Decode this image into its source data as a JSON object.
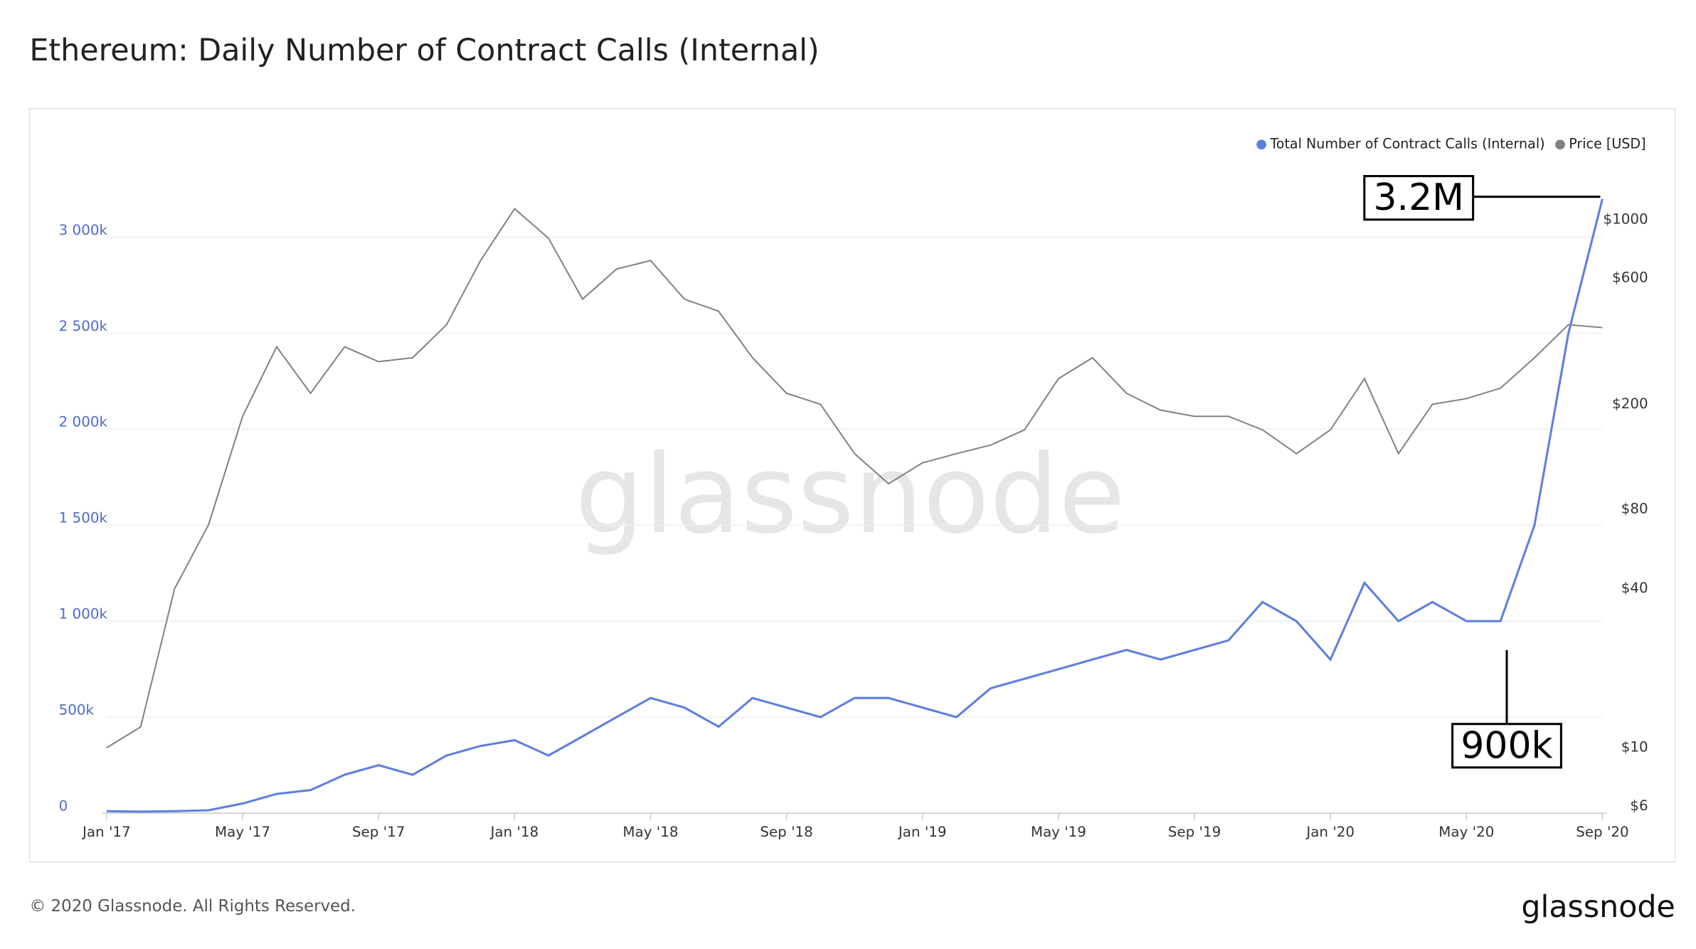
{
  "chart_data": {
    "type": "line",
    "title": "Ethereum: Daily Number of Contract Calls (Internal)",
    "x": [
      "2017-01",
      "2017-02",
      "2017-03",
      "2017-04",
      "2017-05",
      "2017-06",
      "2017-07",
      "2017-08",
      "2017-09",
      "2017-10",
      "2017-11",
      "2017-12",
      "2018-01",
      "2018-02",
      "2018-03",
      "2018-04",
      "2018-05",
      "2018-06",
      "2018-07",
      "2018-08",
      "2018-09",
      "2018-10",
      "2018-11",
      "2018-12",
      "2019-01",
      "2019-02",
      "2019-03",
      "2019-04",
      "2019-05",
      "2019-06",
      "2019-07",
      "2019-08",
      "2019-09",
      "2019-10",
      "2019-11",
      "2019-12",
      "2020-01",
      "2020-02",
      "2020-03",
      "2020-04",
      "2020-05",
      "2020-06",
      "2020-07",
      "2020-08",
      "2020-09"
    ],
    "xticks": [
      {
        "value": "2017-01",
        "label": "Jan '17"
      },
      {
        "value": "2017-05",
        "label": "May '17"
      },
      {
        "value": "2017-09",
        "label": "Sep '17"
      },
      {
        "value": "2018-01",
        "label": "Jan '18"
      },
      {
        "value": "2018-05",
        "label": "May '18"
      },
      {
        "value": "2018-09",
        "label": "Sep '18"
      },
      {
        "value": "2019-01",
        "label": "Jan '19"
      },
      {
        "value": "2019-05",
        "label": "May '19"
      },
      {
        "value": "2019-09",
        "label": "Sep '19"
      },
      {
        "value": "2020-01",
        "label": "Jan '20"
      },
      {
        "value": "2020-05",
        "label": "May '20"
      },
      {
        "value": "2020-09",
        "label": "Sep '20"
      }
    ],
    "series": [
      {
        "name": "Total Number of Contract Calls (Internal)",
        "color": "#5e7fe0",
        "values": [
          10000,
          8000,
          10000,
          15000,
          50000,
          100000,
          120000,
          200000,
          250000,
          200000,
          300000,
          350000,
          380000,
          300000,
          400000,
          500000,
          600000,
          550000,
          450000,
          600000,
          550000,
          500000,
          600000,
          600000,
          550000,
          500000,
          650000,
          700000,
          750000,
          800000,
          850000,
          800000,
          850000,
          900000,
          1100000,
          1000000,
          800000,
          1200000,
          1000000,
          1100000,
          1000000,
          1000000,
          1500000,
          2500000,
          3200000
        ]
      },
      {
        "name": "Price [USD]",
        "color": "#808080",
        "axis": "y2",
        "values": [
          10,
          12,
          40,
          70,
          180,
          330,
          220,
          330,
          290,
          300,
          400,
          700,
          1100,
          850,
          500,
          650,
          700,
          500,
          450,
          300,
          220,
          200,
          130,
          100,
          120,
          130,
          140,
          160,
          250,
          300,
          220,
          190,
          180,
          180,
          160,
          130,
          160,
          250,
          130,
          200,
          210,
          230,
          300,
          400,
          390
        ]
      }
    ],
    "ylim": [
      0,
      3500000
    ],
    "yticks": [
      {
        "value": 0,
        "label": "0"
      },
      {
        "value": 500000,
        "label": "500k"
      },
      {
        "value": 1000000,
        "label": "1 000k"
      },
      {
        "value": 1500000,
        "label": "1 500k"
      },
      {
        "value": 2000000,
        "label": "2 000k"
      },
      {
        "value": 2500000,
        "label": "2 500k"
      },
      {
        "value": 3000000,
        "label": "3 000k"
      }
    ],
    "y2lim": [
      5.66,
      1980
    ],
    "y2log": true,
    "y2ticks": [
      {
        "value": 6,
        "label": "$6"
      },
      {
        "value": 10,
        "label": "$10"
      },
      {
        "value": 40,
        "label": "$40"
      },
      {
        "value": 80,
        "label": "$80"
      },
      {
        "value": 200,
        "label": "$200"
      },
      {
        "value": 600,
        "label": "$600"
      },
      {
        "value": 1000,
        "label": "$1000"
      }
    ],
    "grid": true,
    "legend": "top-right",
    "annotations": [
      {
        "text": "3.2M"
      },
      {
        "text": "900k"
      }
    ],
    "watermark": "glassnode",
    "footer": "© 2020 Glassnode. All Rights Reserved.",
    "brand": "glassnode"
  }
}
